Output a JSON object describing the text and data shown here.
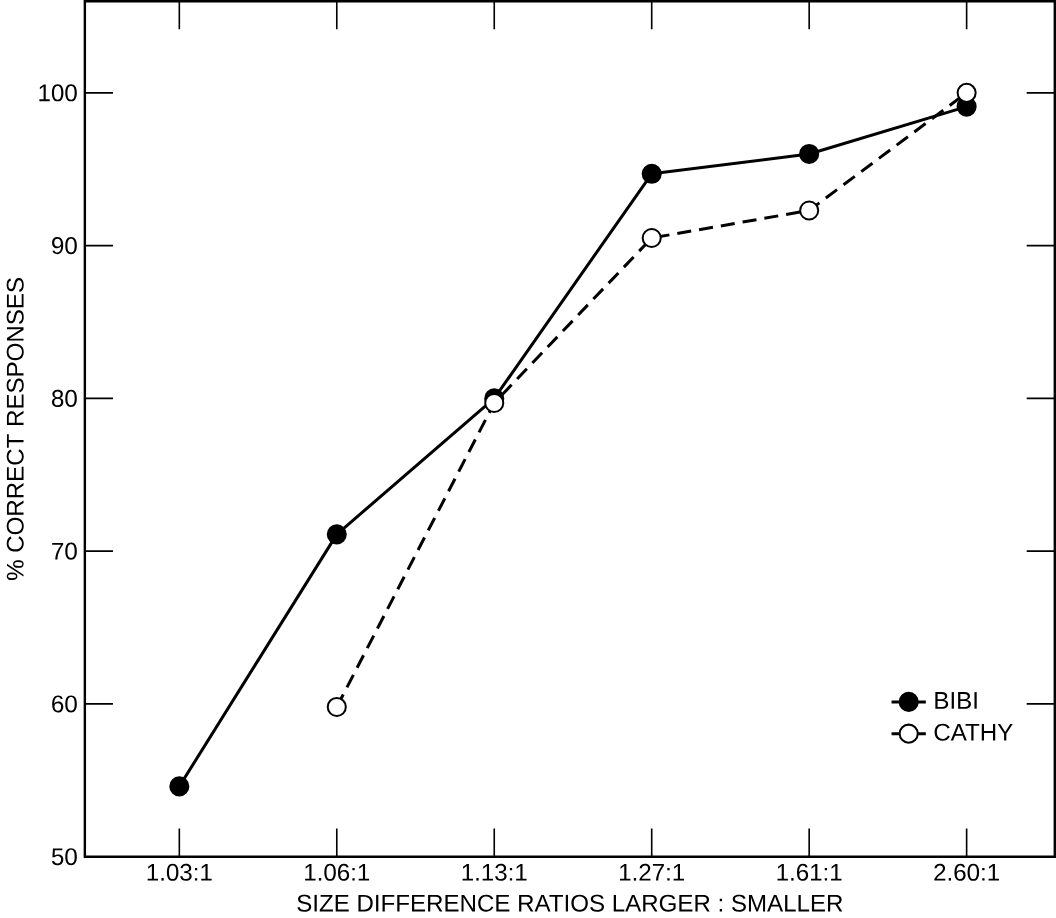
{
  "chart_data": {
    "type": "line",
    "xlabel": "SIZE DIFFERENCE RATIOS LARGER : SMALLER",
    "ylabel": "% CORRECT RESPONSES",
    "categories": [
      "1.03:1",
      "1.06:1",
      "1.13:1",
      "1.27:1",
      "1.61:1",
      "2.60:1"
    ],
    "series": [
      {
        "name": "BIBI",
        "color": "#000000",
        "values": [
          54.6,
          71.1,
          80.0,
          94.7,
          96.0,
          99.1
        ],
        "line_style": "solid"
      },
      {
        "name": "CATHY",
        "color": "#000000",
        "values": [
          null,
          59.8,
          79.7,
          90.5,
          92.3,
          100
        ],
        "line_style": "dashed"
      }
    ],
    "ylim": [
      50,
      106
    ],
    "yticks": [
      50,
      60,
      70,
      80,
      90,
      100
    ],
    "marker": "circle",
    "grid": false,
    "legend": "bottom right"
  }
}
